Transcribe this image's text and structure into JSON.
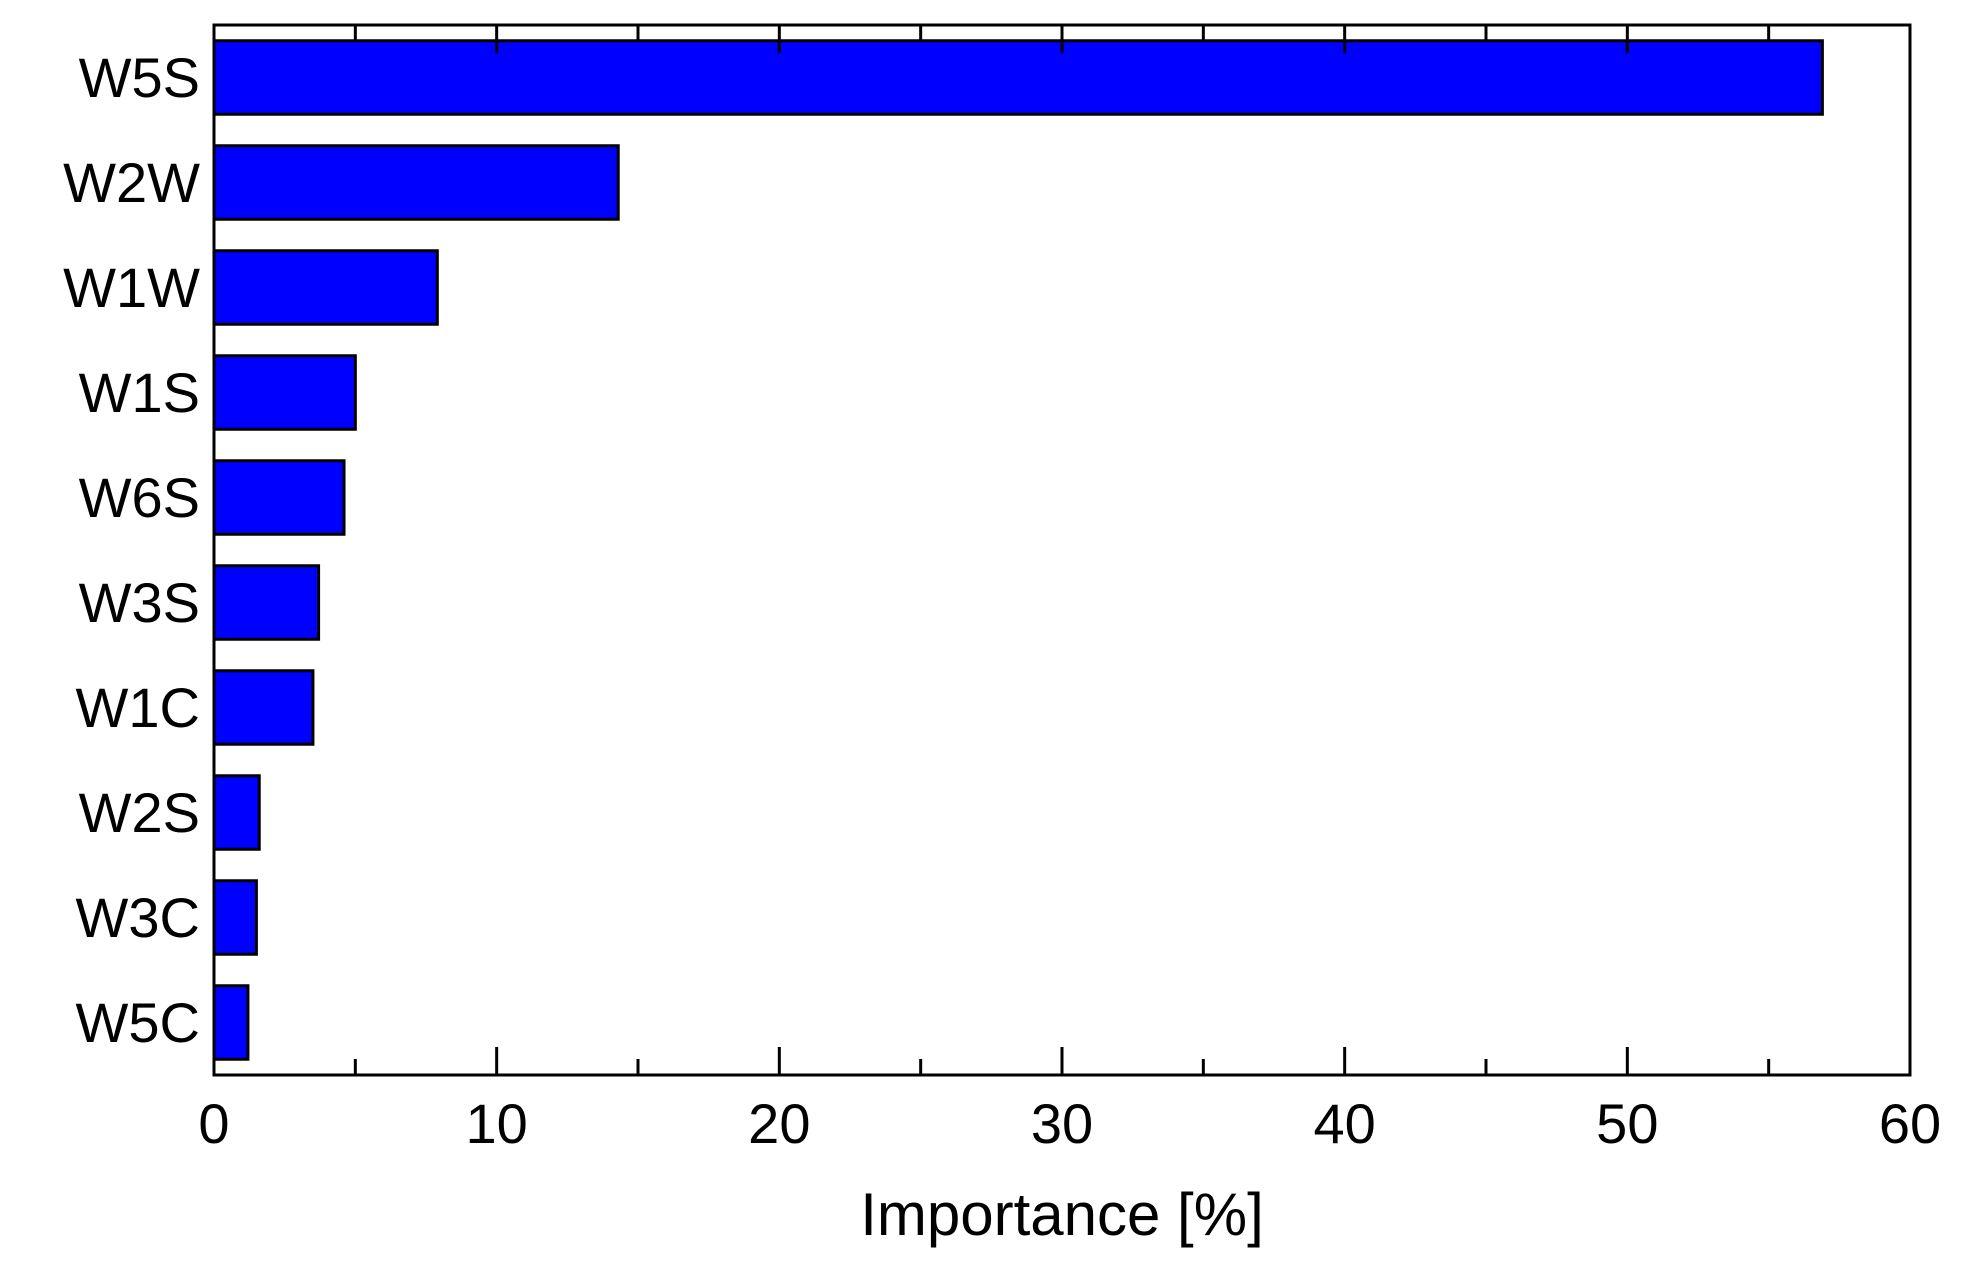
{
  "chart_data": {
    "type": "bar",
    "orientation": "horizontal",
    "categories": [
      "W5S",
      "W2W",
      "W1W",
      "W1S",
      "W6S",
      "W3S",
      "W1C",
      "W2S",
      "W3C",
      "W5C"
    ],
    "values": [
      56.9,
      14.3,
      7.9,
      5.0,
      4.6,
      3.7,
      3.5,
      1.6,
      1.5,
      1.2
    ],
    "xlabel": "Importance [%]",
    "ylabel": "",
    "title": "",
    "xlim": [
      0,
      60
    ],
    "xticks": [
      0,
      10,
      20,
      30,
      40,
      50,
      60
    ],
    "xtick_labels": [
      "0",
      "10",
      "20",
      "30",
      "40",
      "50",
      "60"
    ],
    "minor_tick_step": 5,
    "grid": false,
    "legend": "none",
    "bar_color": "#0000ff",
    "bar_edge_color": "#000000"
  }
}
